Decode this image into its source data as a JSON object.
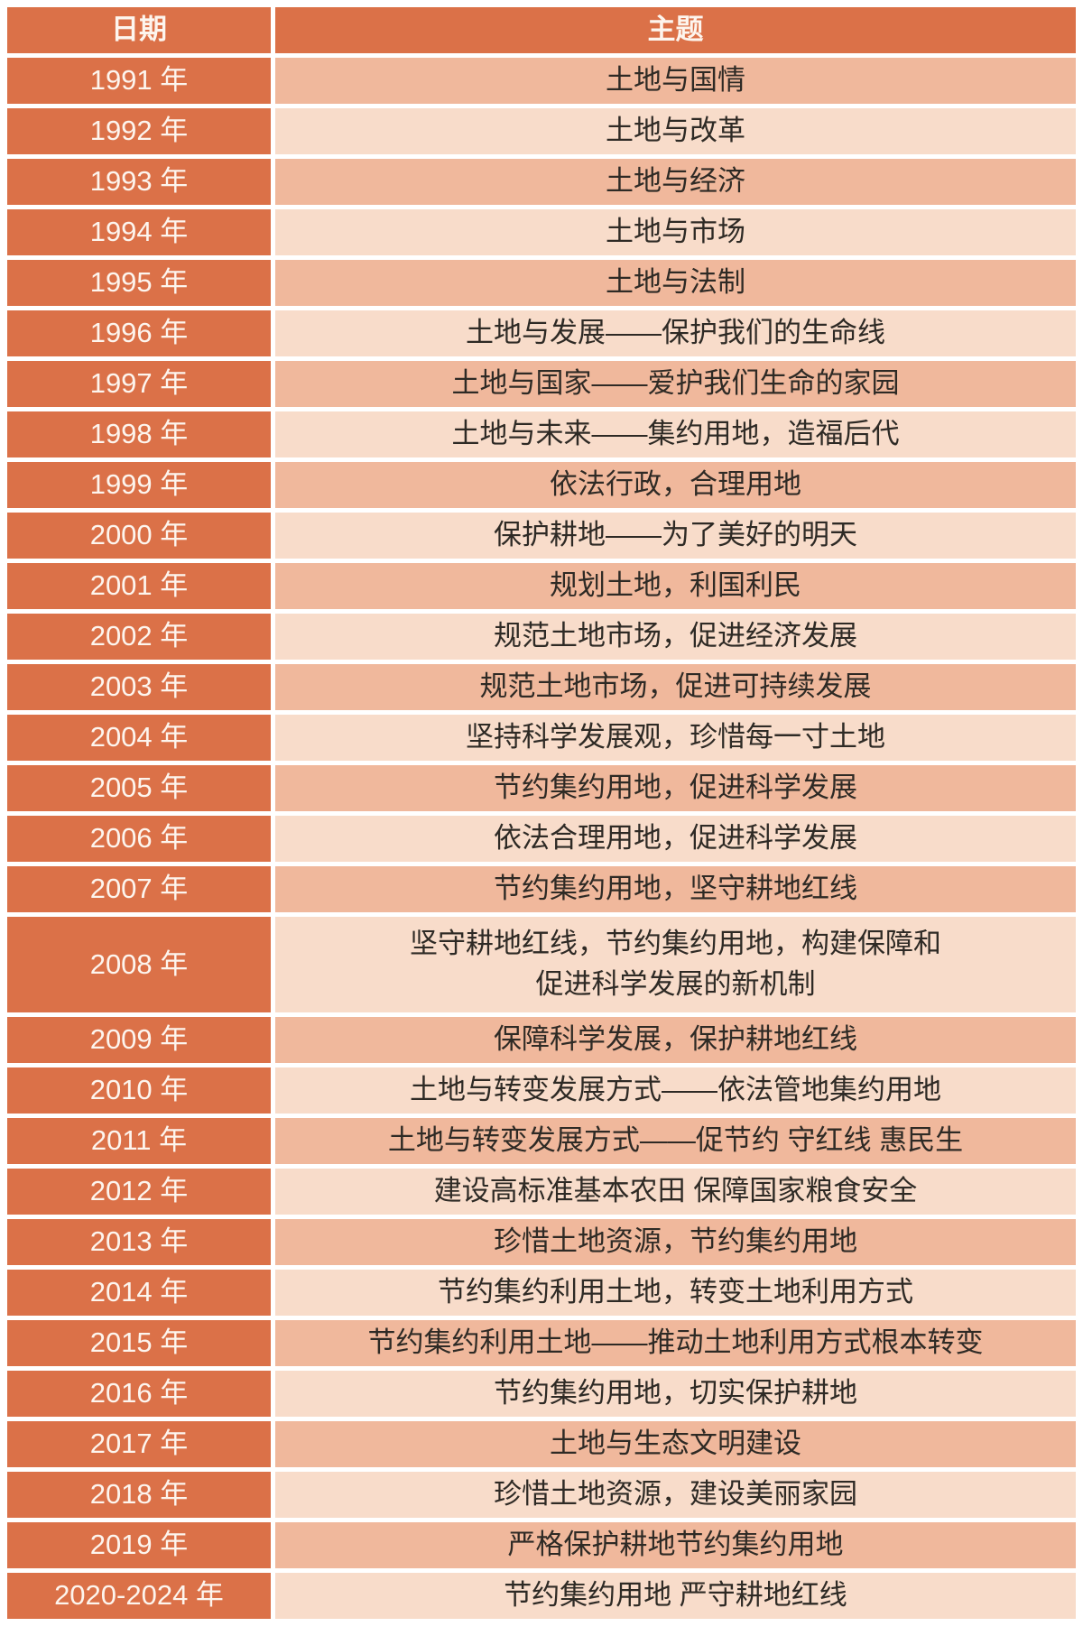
{
  "table": {
    "columns": {
      "date_label": "日期",
      "topic_label": "主题"
    },
    "colors": {
      "header_bg": "#db7148",
      "year_column_bg": "#db7148",
      "topic_row_dark_bg": "#f0b89c",
      "topic_row_light_bg": "#f8dcca",
      "header_text": "#fdf5ee",
      "topic_text": "#2e2a25"
    },
    "rows": [
      {
        "year": "1991 年",
        "topic": "土地与国情"
      },
      {
        "year": "1992 年",
        "topic": "土地与改革"
      },
      {
        "year": "1993 年",
        "topic": "土地与经济"
      },
      {
        "year": "1994 年",
        "topic": "土地与市场"
      },
      {
        "year": "1995 年",
        "topic": "土地与法制"
      },
      {
        "year": "1996 年",
        "topic": "土地与发展——保护我们的生命线"
      },
      {
        "year": "1997 年",
        "topic": "土地与国家——爱护我们生命的家园"
      },
      {
        "year": "1998 年",
        "topic": "土地与未来——集约用地，造福后代"
      },
      {
        "year": "1999 年",
        "topic": "依法行政，合理用地"
      },
      {
        "year": "2000 年",
        "topic": "保护耕地——为了美好的明天"
      },
      {
        "year": "2001 年",
        "topic": "规划土地，利国利民"
      },
      {
        "year": "2002 年",
        "topic": "规范土地市场，促进经济发展"
      },
      {
        "year": "2003 年",
        "topic": "规范土地市场，促进可持续发展"
      },
      {
        "year": "2004 年",
        "topic": "坚持科学发展观，珍惜每一寸土地"
      },
      {
        "year": "2005 年",
        "topic": "节约集约用地，促进科学发展"
      },
      {
        "year": "2006 年",
        "topic": "依法合理用地，促进科学发展"
      },
      {
        "year": "2007 年",
        "topic": "节约集约用地，坚守耕地红线"
      },
      {
        "year": "2008 年",
        "topic": "坚守耕地红线，节约集约用地，构建保障和\n促进科学发展的新机制",
        "tall": true
      },
      {
        "year": "2009 年",
        "topic": "保障科学发展，保护耕地红线"
      },
      {
        "year": "2010 年",
        "topic": "土地与转变发展方式——依法管地集约用地"
      },
      {
        "year": "2011 年",
        "topic": "土地与转变发展方式——促节约 守红线 惠民生"
      },
      {
        "year": "2012 年",
        "topic": "建设高标准基本农田 保障国家粮食安全"
      },
      {
        "year": "2013 年",
        "topic": "珍惜土地资源，节约集约用地"
      },
      {
        "year": "2014 年",
        "topic": "节约集约利用土地，转变土地利用方式"
      },
      {
        "year": "2015 年",
        "topic": "节约集约利用土地——推动土地利用方式根本转变"
      },
      {
        "year": "2016 年",
        "topic": "节约集约用地，切实保护耕地"
      },
      {
        "year": "2017 年",
        "topic": "土地与生态文明建设"
      },
      {
        "year": "2018 年",
        "topic": "珍惜土地资源，建设美丽家园"
      },
      {
        "year": "2019 年",
        "topic": "严格保护耕地节约集约用地"
      },
      {
        "year": "2020-2024 年",
        "topic": "节约集约用地 严守耕地红线"
      }
    ]
  }
}
